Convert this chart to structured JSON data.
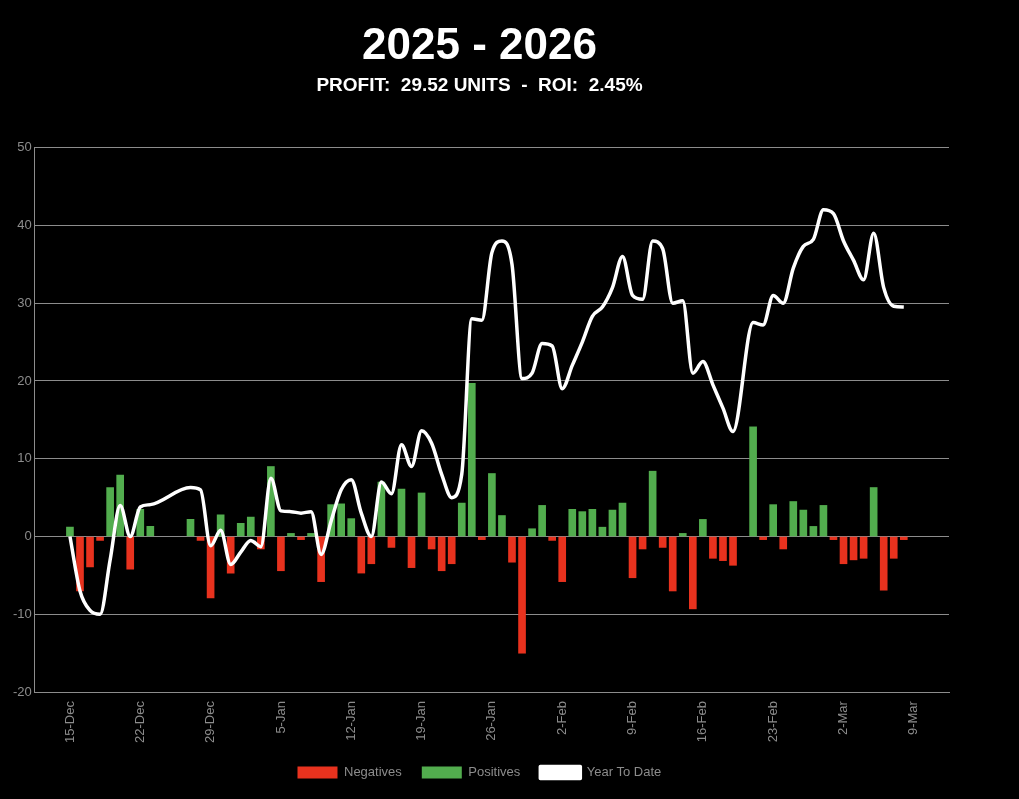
{
  "chart_data": {
    "type": "bar",
    "title": "2025 - 2026",
    "subtitle": "PROFIT:  29.52 UNITS  -  ROI:  2.45%",
    "xlim": [
      "2025-12-15",
      "2026-03-09"
    ],
    "xticks": [
      {
        "value": "2025-12-15",
        "label": "15-Dec"
      },
      {
        "value": "2025-12-22",
        "label": "22-Dec"
      },
      {
        "value": "2025-12-29",
        "label": "29-Dec"
      },
      {
        "value": "2026-01-05",
        "label": "5-Jan"
      },
      {
        "value": "2026-01-12",
        "label": "12-Jan"
      },
      {
        "value": "2026-01-19",
        "label": "19-Jan"
      },
      {
        "value": "2026-01-26",
        "label": "26-Jan"
      },
      {
        "value": "2026-02-02",
        "label": "2-Feb"
      },
      {
        "value": "2026-02-09",
        "label": "9-Feb"
      },
      {
        "value": "2026-02-16",
        "label": "16-Feb"
      },
      {
        "value": "2026-02-23",
        "label": "23-Feb"
      },
      {
        "value": "2026-03-02",
        "label": "2-Mar"
      },
      {
        "value": "2026-03-09",
        "label": "9-Mar"
      }
    ],
    "ylim": [
      -20,
      50
    ],
    "yticks": [
      -20,
      -10,
      0,
      10,
      20,
      30,
      40,
      50
    ],
    "grid": "y",
    "legend": "bottom",
    "series": [
      {
        "name": "Negatives",
        "color": "#e8321e",
        "x": [
          "2025-12-16",
          "2025-12-17",
          "2025-12-18",
          "2025-12-21",
          "2025-12-28",
          "2025-12-29",
          "2025-12-31",
          "2026-01-03",
          "2026-01-05",
          "2026-01-07",
          "2026-01-09",
          "2026-01-13",
          "2026-01-14",
          "2026-01-16",
          "2026-01-18",
          "2026-01-20",
          "2026-01-21",
          "2026-01-22",
          "2026-01-25",
          "2026-01-28",
          "2026-01-29",
          "2026-02-01",
          "2026-02-02",
          "2026-02-09",
          "2026-02-10",
          "2026-02-12",
          "2026-02-13",
          "2026-02-15",
          "2026-02-17",
          "2026-02-18",
          "2026-02-19",
          "2026-02-22",
          "2026-02-24",
          "2026-03-01",
          "2026-03-02",
          "2026-03-03",
          "2026-03-04",
          "2026-03-06",
          "2026-03-07",
          "2026-03-08"
        ],
        "values": [
          -7.0,
          -3.9,
          -0.5,
          -4.2,
          -0.5,
          -7.9,
          -4.7,
          -1.6,
          -4.4,
          -0.4,
          -5.8,
          -4.7,
          -3.5,
          -1.4,
          -4.0,
          -1.6,
          -4.4,
          -3.5,
          -0.4,
          -3.3,
          -15.0,
          -0.5,
          -5.8,
          -5.3,
          -1.6,
          -1.4,
          -7.0,
          -9.3,
          -2.8,
          -3.1,
          -3.7,
          -0.4,
          -1.6,
          -0.4,
          -3.5,
          -3.0,
          -2.8,
          -6.9,
          -2.8,
          -0.4
        ]
      },
      {
        "name": "Positives",
        "color": "#52ad4e",
        "x": [
          "2025-12-15",
          "2025-12-19",
          "2025-12-20",
          "2025-12-22",
          "2025-12-23",
          "2025-12-27",
          "2025-12-30",
          "2026-01-01",
          "2026-01-02",
          "2026-01-04",
          "2026-01-06",
          "2026-01-08",
          "2026-01-10",
          "2026-01-11",
          "2026-01-12",
          "2026-01-15",
          "2026-01-17",
          "2026-01-19",
          "2026-01-23",
          "2026-01-24",
          "2026-01-26",
          "2026-01-27",
          "2026-01-30",
          "2026-01-31",
          "2026-02-03",
          "2026-02-04",
          "2026-02-05",
          "2026-02-06",
          "2026-02-07",
          "2026-02-08",
          "2026-02-11",
          "2026-02-14",
          "2026-02-16",
          "2026-02-21",
          "2026-02-23",
          "2026-02-25",
          "2026-02-26",
          "2026-02-27",
          "2026-02-28",
          "2026-03-05"
        ],
        "values": [
          1.2,
          6.3,
          7.9,
          3.5,
          1.3,
          2.2,
          2.8,
          1.7,
          2.5,
          9.0,
          0.4,
          0.4,
          4.1,
          4.2,
          2.3,
          7.0,
          6.1,
          5.6,
          4.3,
          19.7,
          8.1,
          2.7,
          1.0,
          4.0,
          3.5,
          3.2,
          3.5,
          1.2,
          3.4,
          4.3,
          8.4,
          0.4,
          2.2,
          14.1,
          4.1,
          4.5,
          3.4,
          1.3,
          4.0,
          6.3
        ]
      },
      {
        "name": "Year To Date",
        "type": "line",
        "color": "#ffffff",
        "x": [
          "2025-12-15",
          "2025-12-16",
          "2025-12-17",
          "2025-12-18",
          "2025-12-19",
          "2025-12-20",
          "2025-12-21",
          "2025-12-22",
          "2025-12-23",
          "2025-12-27",
          "2025-12-28",
          "2025-12-29",
          "2025-12-30",
          "2025-12-31",
          "2026-01-01",
          "2026-01-02",
          "2026-01-03",
          "2026-01-04",
          "2026-01-05",
          "2026-01-06",
          "2026-01-07",
          "2026-01-08",
          "2026-01-09",
          "2026-01-10",
          "2026-01-11",
          "2026-01-12",
          "2026-01-13",
          "2026-01-14",
          "2026-01-15",
          "2026-01-16",
          "2026-01-17",
          "2026-01-18",
          "2026-01-19",
          "2026-01-20",
          "2026-01-21",
          "2026-01-22",
          "2026-01-23",
          "2026-01-24",
          "2026-01-25",
          "2026-01-26",
          "2026-01-27",
          "2026-01-28",
          "2026-01-29",
          "2026-01-30",
          "2026-01-31",
          "2026-02-01",
          "2026-02-02",
          "2026-02-03",
          "2026-02-04",
          "2026-02-05",
          "2026-02-06",
          "2026-02-07",
          "2026-02-08",
          "2026-02-09",
          "2026-02-10",
          "2026-02-11",
          "2026-02-12",
          "2026-02-13",
          "2026-02-14",
          "2026-02-15",
          "2026-02-16",
          "2026-02-17",
          "2026-02-18",
          "2026-02-19",
          "2026-02-21",
          "2026-02-22",
          "2026-02-23",
          "2026-02-24",
          "2026-02-25",
          "2026-02-26",
          "2026-02-27",
          "2026-02-28",
          "2026-03-01",
          "2026-03-02",
          "2026-03-03",
          "2026-03-04",
          "2026-03-05",
          "2026-03-06",
          "2026-03-07",
          "2026-03-08"
        ],
        "values": [
          0,
          -7,
          -9.5,
          -10,
          -3,
          4,
          0,
          3.8,
          4.1,
          6.3,
          6,
          -1.2,
          0.8,
          -3.6,
          -2,
          -0.5,
          -1.3,
          7.5,
          3.3,
          3.2,
          3,
          3.2,
          -2.3,
          2,
          6,
          7.3,
          3,
          0,
          7,
          5.5,
          11.8,
          9,
          13.6,
          12,
          8,
          5,
          8,
          28,
          27.8,
          36.5,
          38,
          35,
          20.3,
          21,
          24.8,
          24.5,
          19,
          22,
          25,
          28.3,
          29.5,
          32,
          36,
          31,
          30.5,
          38,
          37,
          30,
          30.3,
          21,
          22.5,
          19.5,
          16.5,
          13.5,
          27.5,
          27.2,
          31,
          30,
          34.5,
          37.3,
          38.2,
          42,
          41.5,
          38,
          35.5,
          33,
          39,
          32,
          29.6,
          29.5
        ]
      }
    ]
  }
}
